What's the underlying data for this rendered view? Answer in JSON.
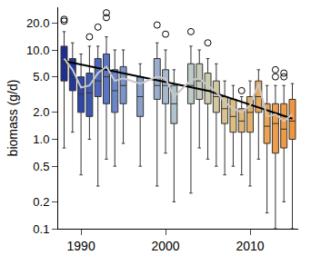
{
  "chart_data": {
    "type": "box",
    "y_label": "biomass (g/d)",
    "log": "y",
    "grid": false,
    "xlim": [
      1987.3,
      2015.7
    ],
    "xticks": [
      1990,
      2000,
      2010
    ],
    "ylim": [
      0.1,
      30
    ],
    "yticks": [
      0.1,
      0.2,
      0.5,
      {
        "value": 1,
        "label": "1.0"
      },
      {
        "value": 2,
        "label": "2.0"
      },
      {
        "value": 5,
        "label": "5.0"
      },
      {
        "value": 10,
        "label": "10.0"
      },
      {
        "value": 20,
        "label": "20.0"
      }
    ],
    "boxes": {
      "x": [
        1988,
        1989,
        1990,
        1991,
        1992,
        1993,
        1994,
        1995,
        1997,
        1999,
        2000,
        2001,
        2003,
        2004,
        2005,
        2006,
        2007,
        2008,
        2009,
        2010,
        2011,
        2012,
        2013,
        2014,
        2015
      ],
      "q1": [
        4.5,
        3.5,
        2.0,
        1.8,
        3.0,
        2.5,
        2.0,
        2.5,
        1.8,
        2.8,
        2.5,
        1.5,
        2.5,
        2.8,
        2.5,
        2.0,
        1.5,
        1.2,
        1.2,
        1.2,
        2.0,
        0.9,
        0.7,
        0.8,
        1.0
      ],
      "median": [
        7.0,
        5.0,
        3.2,
        3.3,
        4.5,
        5.0,
        3.5,
        4.0,
        3.0,
        4.0,
        4.0,
        2.5,
        4.0,
        4.5,
        3.5,
        3.0,
        2.2,
        1.8,
        1.6,
        2.0,
        3.0,
        1.4,
        1.5,
        1.3,
        1.6
      ],
      "q3": [
        11.0,
        8.0,
        5.0,
        5.5,
        8.0,
        9.0,
        6.0,
        6.5,
        5.0,
        8.0,
        6.0,
        4.0,
        7.0,
        7.0,
        5.5,
        4.5,
        3.0,
        2.8,
        2.2,
        3.0,
        4.5,
        2.5,
        2.5,
        2.5,
        2.8
      ],
      "lower": [
        0.8,
        1.2,
        0.4,
        1.0,
        0.3,
        0.6,
        0.5,
        0.9,
        0.5,
        0.3,
        0.7,
        0.2,
        0.25,
        0.8,
        0.6,
        0.5,
        0.4,
        0.5,
        0.4,
        0.3,
        0.6,
        0.15,
        0.1,
        0.2,
        0.1
      ],
      "upper": [
        16,
        12,
        9,
        11,
        11,
        14,
        10,
        10,
        7,
        12,
        10,
        6,
        11,
        10,
        8,
        7,
        4.5,
        4,
        3,
        4.5,
        6,
        4,
        4,
        4,
        4.2
      ],
      "outliers": [
        [
          22,
          21
        ],
        [],
        [],
        [
          14
        ],
        [
          18
        ],
        [
          26,
          23
        ],
        [],
        [],
        [],
        [
          19
        ],
        [
          15
        ],
        [],
        [
          16
        ],
        [],
        [
          12
        ],
        [],
        [],
        [],
        [
          3.5
        ],
        [],
        [],
        [],
        [
          6,
          5
        ],
        [
          5.5,
          5
        ],
        []
      ],
      "colors": [
        "#1f2f8f",
        "#24389a",
        "#2e47a8",
        "#3a56b2",
        "#4a66bb",
        "#5a76c2",
        "#6a86c8",
        "#7a94cc",
        "#8aa0cc",
        "#9aaecc",
        "#a6b8cc",
        "#b2c2cc",
        "#bccbc8",
        "#c4ccbc",
        "#cccbae",
        "#d2c79e",
        "#d8c290",
        "#dcbd82",
        "#e0b674",
        "#e4b068",
        "#e8aa5e",
        "#eca454",
        "#ee9e4a",
        "#f09a44",
        "#f2963e"
      ]
    },
    "series": [
      {
        "type": "line",
        "color": "#000000",
        "x": [
          1988,
          2005,
          2015
        ],
        "values": [
          7.5,
          3.5,
          1.7
        ]
      },
      {
        "type": "line",
        "color": "#c8c8c8",
        "x": [
          1988,
          1989,
          1990,
          1991,
          1992,
          1993,
          1994,
          1995,
          1997,
          1999,
          2000,
          2001,
          2003,
          2004,
          2005,
          2006,
          2007,
          2008,
          2009,
          2010,
          2011,
          2012,
          2013,
          2014,
          2015
        ],
        "values": [
          8.0,
          6.0,
          3.8,
          4.0,
          5.5,
          6.5,
          4.5,
          4.8,
          4.2,
          5.0,
          4.8,
          3.0,
          4.6,
          4.8,
          4.0,
          3.4,
          2.6,
          2.2,
          2.0,
          2.4,
          4.2,
          1.8,
          1.9,
          1.6,
          1.9
        ]
      }
    ]
  }
}
